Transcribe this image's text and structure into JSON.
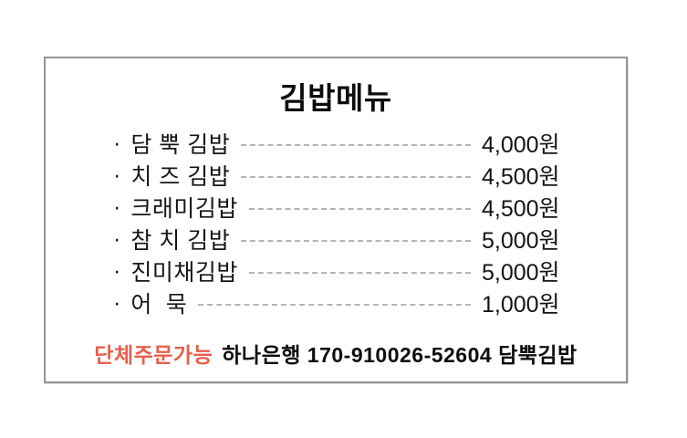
{
  "page": {
    "background": "#ffffff"
  },
  "card": {
    "background": "#ffffff",
    "border_color": "#949494"
  },
  "menu": {
    "title": "김밥메뉴",
    "items": [
      {
        "bullet": "·",
        "name": "담 뿍 김밥",
        "price": "4,000원"
      },
      {
        "bullet": "·",
        "name": "치 즈 김밥",
        "price": "4,500원"
      },
      {
        "bullet": "·",
        "name": "크래미김밥",
        "price": "4,500원"
      },
      {
        "bullet": "·",
        "name": "참 치 김밥",
        "price": "5,000원"
      },
      {
        "bullet": "·",
        "name": "진미채김밥",
        "price": "5,000원"
      },
      {
        "bullet": "·",
        "name": "어  묵",
        "price": "1,000원"
      }
    ]
  },
  "footer": {
    "group_order_label": "단체주문가능",
    "bank_account": "하나은행 170-910026-52604 담뿍김밥",
    "highlight_color": "#e75f4b"
  }
}
